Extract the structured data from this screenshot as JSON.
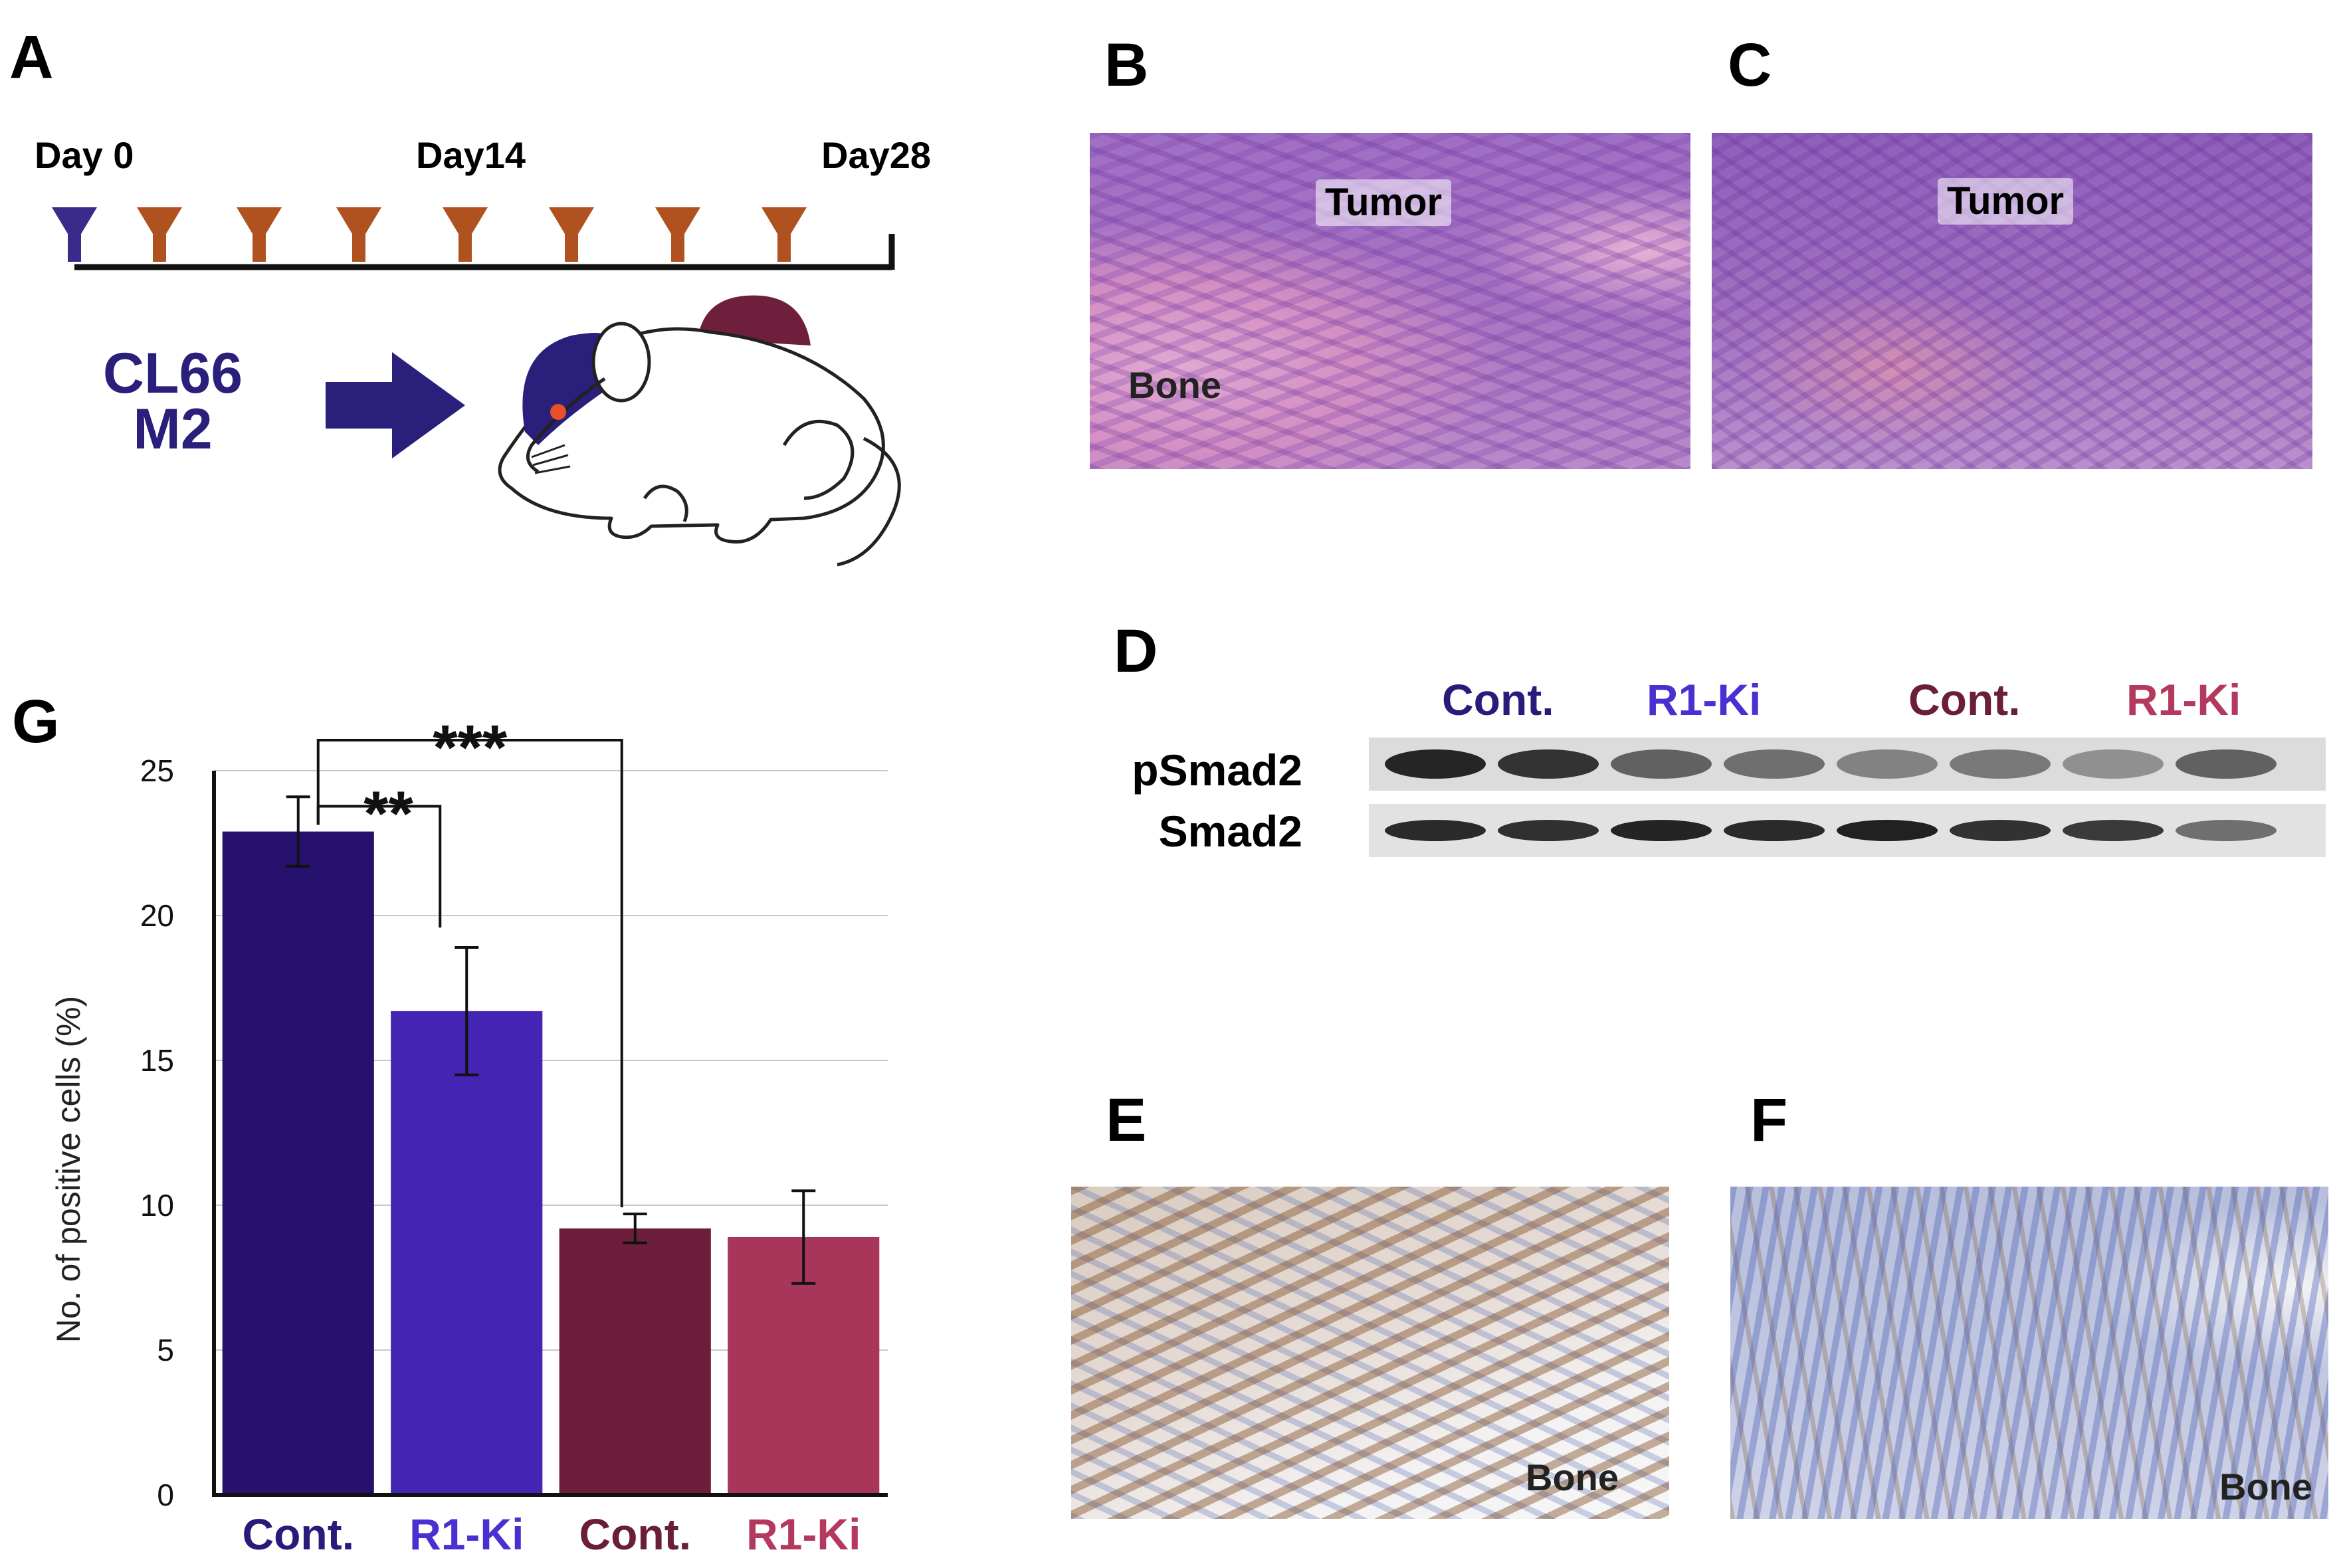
{
  "panels": {
    "a": "A",
    "b": "B",
    "c": "C",
    "d": "D",
    "e": "E",
    "f": "F",
    "g": "G"
  },
  "timeline": {
    "day0": "Day 0",
    "day14": "Day14",
    "day28": "Day28",
    "cell_line_1": "CL66",
    "cell_line_2": "M2",
    "first_marker_color": "#3a2a8a",
    "marker_color": "#b0521f",
    "arrow_color": "#2a1f7a"
  },
  "histology": {
    "b_tumor": "Tumor",
    "b_bone": "Bone",
    "c_tumor": "Tumor",
    "e_bone": "Bone",
    "f_bone": "Bone"
  },
  "western": {
    "groups": [
      {
        "label": "Cont.",
        "color": "#2a1a7a"
      },
      {
        "label": "R1-Ki",
        "color": "#4b2fd0"
      },
      {
        "label": "Cont.",
        "color": "#6a1e38"
      },
      {
        "label": "R1-Ki",
        "color": "#b33a5e"
      }
    ],
    "rows": [
      "pSmad2",
      "Smad2"
    ]
  },
  "chart_data": {
    "type": "bar",
    "categories": [
      "Cont.",
      "R1-Ki",
      "Cont.",
      "R1-Ki"
    ],
    "values": [
      22.9,
      16.7,
      9.2,
      8.9
    ],
    "errors": [
      1.2,
      2.2,
      0.5,
      1.6
    ],
    "colors": [
      "#26126e",
      "#4424b2",
      "#6c1e3a",
      "#a8365a"
    ],
    "category_colors": [
      "#2a1a7a",
      "#4b2fd0",
      "#6a1e38",
      "#b33a5e"
    ],
    "ylabel": "No. of positive cells (%)",
    "ylim": [
      0,
      25
    ],
    "yticks": [
      0,
      5,
      10,
      15,
      20,
      25
    ],
    "grid": true,
    "significance": [
      {
        "from": 0,
        "to": 1,
        "label": "**"
      },
      {
        "from": 0,
        "to": 2,
        "label": "***"
      }
    ]
  }
}
